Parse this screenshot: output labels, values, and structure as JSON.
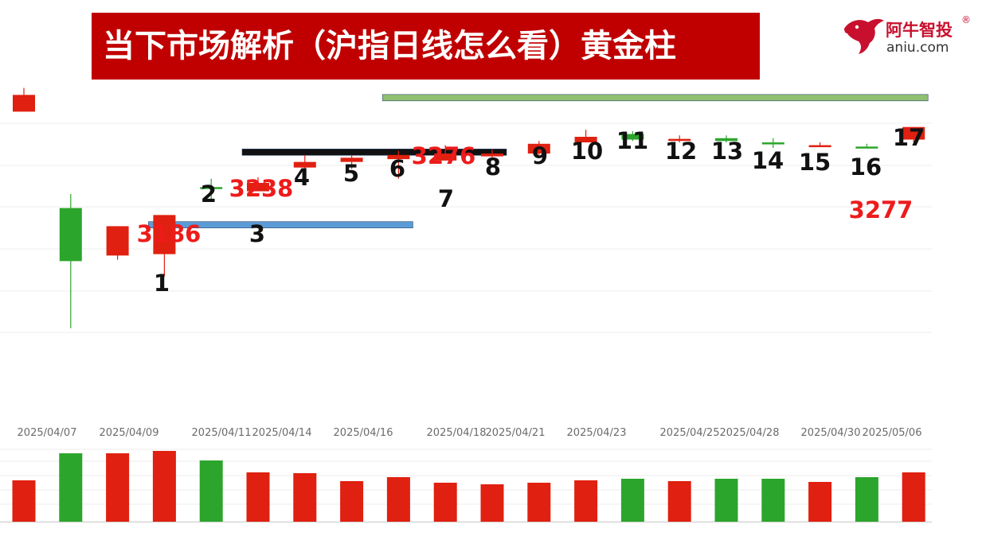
{
  "header": {
    "title": "当下市场解析（沪指日线怎么看）黄金柱"
  },
  "logo": {
    "name_cn": "阿牛智投",
    "registered": "®",
    "domain": "aniu.com"
  },
  "chart_data": {
    "type": "candlestick",
    "title": "当下市场解析（沪指日线怎么看）黄金柱",
    "x_labels": [
      "2025/04/07",
      "2025/04/09",
      "2025/04/11",
      "2025/04/14",
      "2025/04/16",
      "2025/04/18",
      "2025/04/21",
      "2025/04/23",
      "2025/04/25",
      "2025/04/28",
      "2025/04/30",
      "2025/05/06"
    ],
    "y_scale_hint": [
      3060,
      3290
    ],
    "candles": [
      {
        "open": 3279,
        "close": 3267,
        "high": 3284,
        "low": 3267,
        "color": "red",
        "label": ""
      },
      {
        "open": 3160,
        "close": 3198,
        "high": 3208,
        "low": 3112,
        "color": "green",
        "label": ""
      },
      {
        "open": 3164,
        "close": 3185,
        "high": 3185,
        "low": 3161,
        "color": "red",
        "label": ""
      },
      {
        "open": 3165,
        "close": 3193,
        "high": 3193,
        "low": 3149,
        "color": "red",
        "label": "1"
      },
      {
        "open": 3213,
        "close": 3213,
        "high": 3219,
        "low": 3203,
        "color": "green",
        "label": "2"
      },
      {
        "open": 3210,
        "close": 3216,
        "high": 3220,
        "low": 3210,
        "color": "red",
        "label": "3"
      },
      {
        "open": 3227,
        "close": 3231,
        "high": 3236,
        "low": 3224,
        "color": "red",
        "label": "4"
      },
      {
        "open": 3231,
        "close": 3234,
        "high": 3236,
        "low": 3226,
        "color": "red",
        "label": "5"
      },
      {
        "open": 3233,
        "close": 3236,
        "high": 3239,
        "low": 3219,
        "color": "red",
        "label": "6"
      },
      {
        "open": 3232,
        "close": 3237,
        "high": 3243,
        "low": 3232,
        "color": "red",
        "label": "7"
      },
      {
        "open": 3235,
        "close": 3237,
        "high": 3240,
        "low": 3233,
        "color": "red",
        "label": "8"
      },
      {
        "open": 3237,
        "close": 3244,
        "high": 3246,
        "low": 3236,
        "color": "red",
        "label": "9"
      },
      {
        "open": 3245,
        "close": 3249,
        "high": 3254,
        "low": 3245,
        "color": "red",
        "label": "10"
      },
      {
        "open": 3251,
        "close": 3247,
        "high": 3253,
        "low": 3246,
        "color": "green",
        "label": "11"
      },
      {
        "open": 3247,
        "close": 3247.5,
        "high": 3250,
        "low": 3245,
        "color": "red",
        "label": "12"
      },
      {
        "open": 3248,
        "close": 3246,
        "high": 3250,
        "low": 3245,
        "color": "green",
        "label": "13"
      },
      {
        "open": 3245,
        "close": 3244,
        "high": 3248,
        "low": 3241,
        "color": "green",
        "label": "14"
      },
      {
        "open": 3242,
        "close": 3243,
        "high": 3245,
        "low": 3242,
        "color": "red",
        "label": "15"
      },
      {
        "open": 3242,
        "close": 3242,
        "high": 3244,
        "low": 3242,
        "color": "green",
        "label": "16"
      },
      {
        "open": 3247,
        "close": 3256,
        "high": 3256,
        "low": 3245,
        "color": "red",
        "label": "17"
      }
    ],
    "volume": [
      {
        "value": 52,
        "color": "red"
      },
      {
        "value": 86,
        "color": "green"
      },
      {
        "value": 86,
        "color": "red"
      },
      {
        "value": 89,
        "color": "red"
      },
      {
        "value": 77,
        "color": "green"
      },
      {
        "value": 62,
        "color": "red"
      },
      {
        "value": 61,
        "color": "red"
      },
      {
        "value": 51,
        "color": "red"
      },
      {
        "value": 56,
        "color": "red"
      },
      {
        "value": 49,
        "color": "red"
      },
      {
        "value": 47,
        "color": "red"
      },
      {
        "value": 49,
        "color": "red"
      },
      {
        "value": 52,
        "color": "red"
      },
      {
        "value": 54,
        "color": "green"
      },
      {
        "value": 51,
        "color": "red"
      },
      {
        "value": 54,
        "color": "green"
      },
      {
        "value": 54,
        "color": "green"
      },
      {
        "value": 50,
        "color": "red"
      },
      {
        "value": 56,
        "color": "green"
      },
      {
        "value": 62,
        "color": "red"
      }
    ],
    "levels": [
      {
        "value": 3186,
        "label": "3186",
        "color": "#5b9bd5",
        "from_candle": 3,
        "to_candle": 8
      },
      {
        "value": 3238,
        "label": "3238",
        "color": "#111111",
        "from_candle": 5,
        "to_candle": 10
      },
      {
        "value": 3277,
        "label": "3277",
        "color": "#8fbf70",
        "from_candle": 8,
        "to_candle": 19
      }
    ],
    "price_annotations": [
      {
        "text": "3276",
        "color": "red"
      }
    ],
    "colors": {
      "up": "#e02010",
      "down": "#2ca52c"
    }
  }
}
